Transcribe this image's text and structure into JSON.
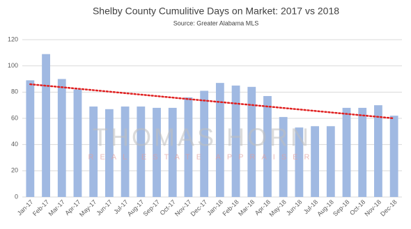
{
  "chart_data": {
    "type": "bar",
    "title": "Shelby County Cumulitive Days on Market: 2017 vs 2018",
    "subtitle": "Source: Greater Alabama MLS",
    "categories": [
      "Jan-17",
      "Feb-17",
      "Mar-17",
      "Apr-17",
      "May-17",
      "Jun-17",
      "Jul-17",
      "Aug-17",
      "Sep-17",
      "Oct-17",
      "Nov-17",
      "Dec-17",
      "Jan-18",
      "Feb-18",
      "Mar-18",
      "Apr-18",
      "May-18",
      "Jun-18",
      "Jul-18",
      "Aug-18",
      "Sep-18",
      "Oct-18",
      "Nov-18",
      "Dec-18"
    ],
    "values": [
      89,
      109,
      90,
      82,
      69,
      67,
      69,
      69,
      68,
      68,
      76,
      81,
      87,
      85,
      84,
      77,
      61,
      53,
      54,
      54,
      68,
      68,
      70,
      62
    ],
    "color": "#a0b9e2",
    "trendline": {
      "color": "#e02020",
      "values": [
        86,
        60
      ]
    },
    "ylim": [
      0,
      120
    ],
    "yticks": [
      0,
      20,
      40,
      60,
      80,
      100,
      120
    ],
    "grid": true,
    "watermark": {
      "title": "THOMAS HORN",
      "subtitle": "REAL ESTATE APPRAISER"
    }
  }
}
